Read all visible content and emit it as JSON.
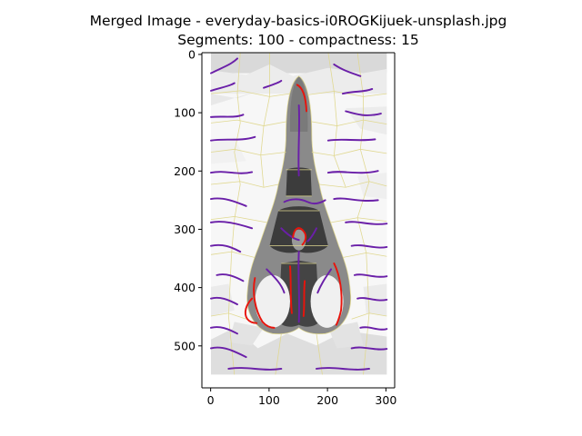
{
  "chart_data": {
    "type": "image",
    "title_line1": "Merged Image - everyday-basics-i0ROGKijuek-unsplash.jpg",
    "title_line2": "Segments: 100 - compactness: 15",
    "xlabel": "",
    "ylabel": "",
    "x_ticks": [
      "0",
      "100",
      "200",
      "300"
    ],
    "y_ticks": [
      "0",
      "100",
      "200",
      "300",
      "400",
      "500"
    ],
    "x_tick_values": [
      0,
      100,
      200,
      300
    ],
    "y_tick_values": [
      0,
      100,
      200,
      300,
      400,
      500
    ],
    "xlim": [
      -15,
      315
    ],
    "ylim": [
      572,
      -3
    ],
    "image_extent": {
      "width": 300,
      "height": 550
    },
    "colors": {
      "background_light": "#f7f7f7",
      "background_mid": "#dcdcdc",
      "object_gray": "#8a8a8a",
      "object_dark": "#3c3c3c",
      "boundary_yellow": "#e0d890",
      "stroke_purple": "#6a1fa8",
      "stroke_red": "#e8140c"
    },
    "grid": false,
    "legend": "none"
  }
}
